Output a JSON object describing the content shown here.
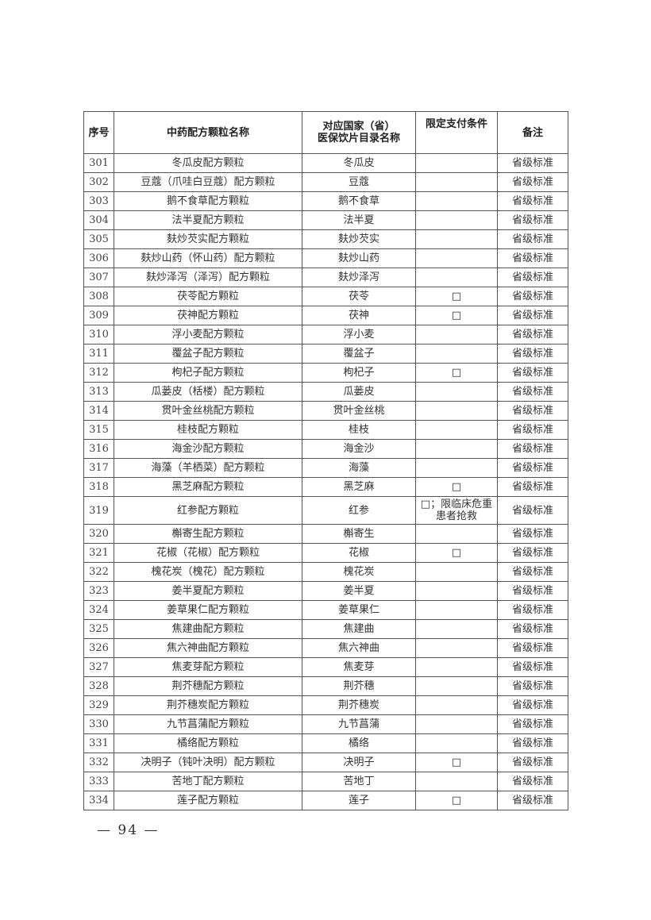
{
  "table": {
    "headers": [
      "序号",
      "中药配方颗粒名称",
      "对应国家（省）\n医保饮片目录名称",
      "限定支付条件",
      "备注"
    ],
    "rows": [
      {
        "no": "301",
        "name": "冬瓜皮配方颗粒",
        "catalog": "冬瓜皮",
        "condition": "",
        "note": "省级标准"
      },
      {
        "no": "302",
        "name": "豆蔻（爪哇白豆蔻）配方颗粒",
        "catalog": "豆蔻",
        "condition": "",
        "note": "省级标准"
      },
      {
        "no": "303",
        "name": "鹅不食草配方颗粒",
        "catalog": "鹅不食草",
        "condition": "",
        "note": "省级标准"
      },
      {
        "no": "304",
        "name": "法半夏配方颗粒",
        "catalog": "法半夏",
        "condition": "",
        "note": "省级标准"
      },
      {
        "no": "305",
        "name": "麸炒芡实配方颗粒",
        "catalog": "麸炒芡实",
        "condition": "",
        "note": "省级标准"
      },
      {
        "no": "306",
        "name": "麸炒山药（怀山药）配方颗粒",
        "catalog": "麸炒山药",
        "condition": "",
        "note": "省级标准"
      },
      {
        "no": "307",
        "name": "麸炒泽泻（泽泻）配方颗粒",
        "catalog": "麸炒泽泻",
        "condition": "",
        "note": "省级标准"
      },
      {
        "no": "308",
        "name": "茯苓配方颗粒",
        "catalog": "茯苓",
        "condition": "□",
        "note": "省级标准"
      },
      {
        "no": "309",
        "name": "茯神配方颗粒",
        "catalog": "茯神",
        "condition": "□",
        "note": "省级标准"
      },
      {
        "no": "310",
        "name": "浮小麦配方颗粒",
        "catalog": "浮小麦",
        "condition": "",
        "note": "省级标准"
      },
      {
        "no": "311",
        "name": "覆盆子配方颗粒",
        "catalog": "覆盆子",
        "condition": "",
        "note": "省级标准"
      },
      {
        "no": "312",
        "name": "枸杞子配方颗粒",
        "catalog": "枸杞子",
        "condition": "□",
        "note": "省级标准"
      },
      {
        "no": "313",
        "name": "瓜蒌皮（栝楼）配方颗粒",
        "catalog": "瓜蒌皮",
        "condition": "",
        "note": "省级标准"
      },
      {
        "no": "314",
        "name": "贯叶金丝桃配方颗粒",
        "catalog": "贯叶金丝桃",
        "condition": "",
        "note": "省级标准"
      },
      {
        "no": "315",
        "name": "桂枝配方颗粒",
        "catalog": "桂枝",
        "condition": "",
        "note": "省级标准"
      },
      {
        "no": "316",
        "name": "海金沙配方颗粒",
        "catalog": "海金沙",
        "condition": "",
        "note": "省级标准"
      },
      {
        "no": "317",
        "name": "海藻（羊栖菜）配方颗粒",
        "catalog": "海藻",
        "condition": "",
        "note": "省级标准"
      },
      {
        "no": "318",
        "name": "黑芝麻配方颗粒",
        "catalog": "黑芝麻",
        "condition": "□",
        "note": "省级标准"
      },
      {
        "no": "319",
        "name": "红参配方颗粒",
        "catalog": "红参",
        "condition": "□；限临床危重患者抢救",
        "note": "省级标准"
      },
      {
        "no": "320",
        "name": "槲寄生配方颗粒",
        "catalog": "槲寄生",
        "condition": "",
        "note": "省级标准"
      },
      {
        "no": "321",
        "name": "花椒（花椒）配方颗粒",
        "catalog": "花椒",
        "condition": "□",
        "note": "省级标准"
      },
      {
        "no": "322",
        "name": "槐花炭（槐花）配方颗粒",
        "catalog": "槐花炭",
        "condition": "",
        "note": "省级标准"
      },
      {
        "no": "323",
        "name": "姜半夏配方颗粒",
        "catalog": "姜半夏",
        "condition": "",
        "note": "省级标准"
      },
      {
        "no": "324",
        "name": "姜草果仁配方颗粒",
        "catalog": "姜草果仁",
        "condition": "",
        "note": "省级标准"
      },
      {
        "no": "325",
        "name": "焦建曲配方颗粒",
        "catalog": "焦建曲",
        "condition": "",
        "note": "省级标准"
      },
      {
        "no": "326",
        "name": "焦六神曲配方颗粒",
        "catalog": "焦六神曲",
        "condition": "",
        "note": "省级标准"
      },
      {
        "no": "327",
        "name": "焦麦芽配方颗粒",
        "catalog": "焦麦芽",
        "condition": "",
        "note": "省级标准"
      },
      {
        "no": "328",
        "name": "荆芥穗配方颗粒",
        "catalog": "荆芥穗",
        "condition": "",
        "note": "省级标准"
      },
      {
        "no": "329",
        "name": "荆芥穗炭配方颗粒",
        "catalog": "荆芥穗炭",
        "condition": "",
        "note": "省级标准"
      },
      {
        "no": "330",
        "name": "九节菖蒲配方颗粒",
        "catalog": "九节菖蒲",
        "condition": "",
        "note": "省级标准"
      },
      {
        "no": "331",
        "name": "橘络配方颗粒",
        "catalog": "橘络",
        "condition": "",
        "note": "省级标准"
      },
      {
        "no": "332",
        "name": "决明子（钝叶决明）配方颗粒",
        "catalog": "决明子",
        "condition": "□",
        "note": "省级标准"
      },
      {
        "no": "333",
        "name": "苦地丁配方颗粒",
        "catalog": "苦地丁",
        "condition": "",
        "note": "省级标准"
      },
      {
        "no": "334",
        "name": "莲子配方颗粒",
        "catalog": "莲子",
        "condition": "□",
        "note": "省级标准"
      }
    ]
  },
  "page_number": "— 94 —"
}
